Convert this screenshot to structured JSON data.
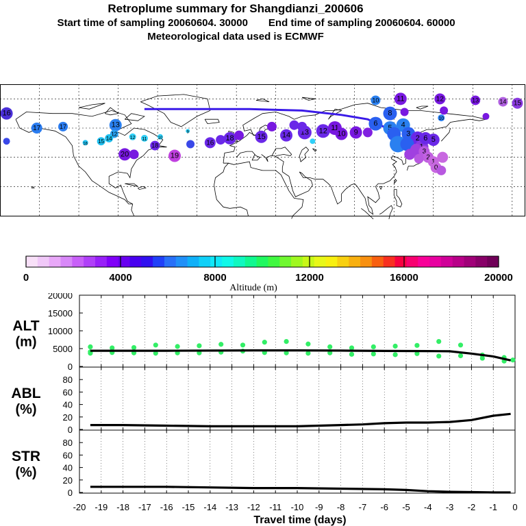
{
  "header": {
    "title": "Retroplume summary for Shangdianzi_200606",
    "start_label": "Start time of sampling 20060604. 30000",
    "end_label": "End time of sampling 20060604. 60000",
    "met_label": "Meteorological data used is ECMWF"
  },
  "colorbar": {
    "colors": [
      "#f8e0f8",
      "#f0c8f8",
      "#e8a8f8",
      "#d888f8",
      "#c860f8",
      "#b040f8",
      "#9820f8",
      "#8000f8",
      "#6800f0",
      "#4800f0",
      "#3010f0",
      "#2040f8",
      "#2870f8",
      "#2090f8",
      "#10b0f8",
      "#10d0f8",
      "#10e8f8",
      "#10f8e8",
      "#10f8c0",
      "#10f890",
      "#20f860",
      "#40f840",
      "#70f830",
      "#a0f820",
      "#c8f818",
      "#e8f818",
      "#f8f010",
      "#f8d010",
      "#f8b010",
      "#f89010",
      "#f86010",
      "#f83020",
      "#f80040",
      "#f80070",
      "#f80098",
      "#e800a0",
      "#d00098",
      "#b80088",
      "#a00078",
      "#880068",
      "#700058"
    ],
    "tick_labels": [
      "0",
      "4000",
      "8000",
      "12000",
      "16000",
      "20000"
    ],
    "tick_values": [
      0,
      4000,
      8000,
      12000,
      16000,
      20000
    ],
    "range": [
      0,
      20000
    ],
    "axis_label": "Altitude (m)"
  },
  "map": {
    "points": [
      {
        "label": "16",
        "lon": -175,
        "lat": 70,
        "color": "#4a2fd8",
        "r": 9
      },
      {
        "label": "17",
        "lon": -152,
        "lat": 60,
        "color": "#2a7cf0",
        "r": 8
      },
      {
        "label": "17",
        "lon": -132,
        "lat": 61,
        "color": "#2a7cf0",
        "r": 7
      },
      {
        "label": "",
        "lon": -175,
        "lat": 51,
        "color": "#3a48e8",
        "r": 5
      },
      {
        "label": "13",
        "lon": -92,
        "lat": 62,
        "color": "#2a80f0",
        "r": 9
      },
      {
        "label": "12",
        "lon": -93,
        "lat": 56,
        "color": "#2aa0f0",
        "r": 6
      },
      {
        "label": "14",
        "lon": -97,
        "lat": 53,
        "color": "#20c0f0",
        "r": 6
      },
      {
        "label": "15",
        "lon": -103,
        "lat": 51,
        "color": "#20c0f0",
        "r": 6
      },
      {
        "label": "16",
        "lon": -115,
        "lat": 50,
        "color": "#20c0f0",
        "r": 4
      },
      {
        "label": "12",
        "lon": -79,
        "lat": 54,
        "color": "#30d0f8",
        "r": 5
      },
      {
        "label": "11",
        "lon": -70,
        "lat": 53,
        "color": "#30d0f8",
        "r": 5
      },
      {
        "label": "10",
        "lon": -58,
        "lat": 54,
        "color": "#30d0f8",
        "r": 4
      },
      {
        "label": "9",
        "lon": -37,
        "lat": 58,
        "color": "#30d0f8",
        "r": 3
      },
      {
        "label": "",
        "lon": -35,
        "lat": 49,
        "color": "#3a48e8",
        "r": 6
      },
      {
        "label": "18",
        "lon": -62,
        "lat": 48,
        "color": "#6a28e8",
        "r": 7
      },
      {
        "label": "20",
        "lon": -85,
        "lat": 42,
        "color": "#7818e0",
        "r": 9
      },
      {
        "label": "",
        "lon": -78,
        "lat": 42,
        "color": "#7818e0",
        "r": 7
      },
      {
        "label": "19",
        "lon": -47,
        "lat": 41,
        "color": "#c040e0",
        "r": 9
      },
      {
        "label": "16",
        "lon": -20,
        "lat": 50,
        "color": "#6a28e8",
        "r": 8
      },
      {
        "label": "",
        "lon": -12,
        "lat": 52,
        "color": "#6a28e8",
        "r": 7
      },
      {
        "label": "18",
        "lon": -5,
        "lat": 53,
        "color": "#6a28e8",
        "r": 9
      },
      {
        "label": "",
        "lon": 2,
        "lat": 55,
        "color": "#7818e0",
        "r": 7
      },
      {
        "label": "15",
        "lon": 19,
        "lat": 54,
        "color": "#6a28e8",
        "r": 9
      },
      {
        "label": "",
        "lon": 27,
        "lat": 61,
        "color": "#7818e0",
        "r": 7
      },
      {
        "label": "14",
        "lon": 38,
        "lat": 55,
        "color": "#6a28e8",
        "r": 9
      },
      {
        "label": "13",
        "lon": 52,
        "lat": 57,
        "color": "#6a28e8",
        "r": 10
      },
      {
        "label": "12",
        "lon": 66,
        "lat": 58,
        "color": "#6a28e8",
        "r": 10
      },
      {
        "label": "11",
        "lon": 75,
        "lat": 60,
        "color": "#7818e0",
        "r": 10
      },
      {
        "label": "10",
        "lon": 80,
        "lat": 56,
        "color": "#7818e0",
        "r": 9
      },
      {
        "label": "9",
        "lon": 91,
        "lat": 57,
        "color": "#7818e0",
        "r": 9
      },
      {
        "label": "",
        "lon": 100,
        "lat": 57,
        "color": "#8020e0",
        "r": 7
      },
      {
        "label": "",
        "lon": 44,
        "lat": 62,
        "color": "#6a28e8",
        "r": 7
      },
      {
        "label": "",
        "lon": 50,
        "lat": 61,
        "color": "#6a28e8",
        "r": 7
      },
      {
        "label": "",
        "lon": 58,
        "lat": 51,
        "color": "#30d0f8",
        "r": 4
      },
      {
        "label": "10",
        "lon": 106,
        "lat": 79,
        "color": "#2a80f0",
        "r": 7
      },
      {
        "label": "11",
        "lon": 125,
        "lat": 80,
        "color": "#7818e0",
        "r": 9
      },
      {
        "label": "12",
        "lon": 155,
        "lat": 80,
        "color": "#7818e0",
        "r": 8
      },
      {
        "label": "13",
        "lon": 182,
        "lat": 79,
        "color": "#7818e0",
        "r": 7
      },
      {
        "label": "14",
        "lon": 203,
        "lat": 78,
        "color": "#b060e0",
        "r": 7
      },
      {
        "label": "15",
        "lon": 214,
        "lat": 77,
        "color": "#8a3ae0",
        "r": 8
      },
      {
        "label": "",
        "lon": 158,
        "lat": 72,
        "color": "#7818e0",
        "r": 6
      },
      {
        "label": "",
        "lon": 190,
        "lat": 68,
        "color": "#7818e0",
        "r": 5
      },
      {
        "label": "",
        "lon": 128,
        "lat": 71,
        "color": "#7818e0",
        "r": 6
      },
      {
        "label": "10",
        "lon": 156,
        "lat": 67,
        "color": "#2a80f0",
        "r": 5
      },
      {
        "label": "8",
        "lon": 117,
        "lat": 70,
        "color": "#2a60f0",
        "r": 10
      },
      {
        "label": "6",
        "lon": 106,
        "lat": 63,
        "color": "#2a60f0",
        "r": 10
      },
      {
        "label": "5",
        "lon": 117,
        "lat": 60,
        "color": "#2a80f0",
        "r": 10
      },
      {
        "label": "4",
        "lon": 127,
        "lat": 62,
        "color": "#2a80f0",
        "r": 10
      },
      {
        "label": "3",
        "lon": 131,
        "lat": 56,
        "color": "#2a60f0",
        "r": 10
      },
      {
        "label": "",
        "lon": 120,
        "lat": 56,
        "color": "#2a60f0",
        "r": 10
      },
      {
        "label": "2",
        "lon": 138,
        "lat": 53,
        "color": "#6a28e8",
        "r": 10
      },
      {
        "label": "1",
        "lon": 141,
        "lat": 47,
        "color": "#8a3ae0",
        "r": 10
      },
      {
        "label": "",
        "lon": 123,
        "lat": 49,
        "color": "#2a80f0",
        "r": 12
      },
      {
        "label": "",
        "lon": 130,
        "lat": 49,
        "color": "#2a60f0",
        "r": 10
      },
      {
        "label": "",
        "lon": 137,
        "lat": 45,
        "color": "#a040e0",
        "r": 9
      },
      {
        "label": "6",
        "lon": 144,
        "lat": 53,
        "color": "#6a28e8",
        "r": 9
      },
      {
        "label": "5",
        "lon": 150,
        "lat": 52,
        "color": "#6a28e8",
        "r": 9
      },
      {
        "label": "3",
        "lon": 143,
        "lat": 44,
        "color": "#b858e0",
        "r": 8
      },
      {
        "label": "2",
        "lon": 146,
        "lat": 40,
        "color": "#c060e0",
        "r": 8
      },
      {
        "label": "1",
        "lon": 150,
        "lat": 37,
        "color": "#c868e0",
        "r": 8
      },
      {
        "label": "0",
        "lon": 152,
        "lat": 33,
        "color": "#c868e0",
        "r": 8
      },
      {
        "label": "",
        "lon": 157,
        "lat": 40,
        "color": "#c868e0",
        "r": 8
      },
      {
        "label": "",
        "lon": 156,
        "lat": 31,
        "color": "#b858e0",
        "r": 7
      },
      {
        "label": "",
        "lon": 139,
        "lat": 39,
        "color": "#b858e0",
        "r": 7
      },
      {
        "label": "",
        "lon": 132,
        "lat": 42,
        "color": "#a040e0",
        "r": 8
      }
    ],
    "track": [
      [
        -70,
        73
      ],
      [
        -30,
        73
      ],
      [
        10,
        73
      ],
      [
        50,
        72
      ],
      [
        80,
        69
      ],
      [
        100,
        66
      ],
      [
        112,
        61
      ],
      [
        117,
        57
      ],
      [
        124,
        52
      ],
      [
        129,
        49
      ],
      [
        135,
        45
      ],
      [
        141,
        41
      ],
      [
        150,
        37
      ],
      [
        155,
        32
      ]
    ]
  },
  "chart_data": [
    {
      "type": "scatter",
      "name": "ALT",
      "ylabel_line1": "ALT",
      "ylabel_line2": "(m)",
      "ylim": [
        0,
        20000
      ],
      "yticks": [
        0,
        5000,
        10000,
        15000,
        20000
      ],
      "ytick_labels": [
        "0",
        "5000",
        "10000",
        "15000",
        "20000"
      ],
      "xlim": [
        -20,
        0
      ],
      "median_line": {
        "x": [
          -19.5,
          -18,
          -16,
          -14,
          -12,
          -10,
          -8,
          -6,
          -4,
          -3,
          -2,
          -1,
          -0.2
        ],
        "y": [
          4400,
          4400,
          4400,
          4450,
          4500,
          4500,
          4450,
          4350,
          4300,
          4250,
          3600,
          2800,
          1700
        ]
      },
      "points": {
        "x": [
          -19.5,
          -19.5,
          -19.5,
          -18.5,
          -18.5,
          -17.5,
          -17.5,
          -16.5,
          -16.5,
          -15.5,
          -15.5,
          -14.5,
          -14.5,
          -13.5,
          -13.5,
          -12.5,
          -12.5,
          -11.5,
          -11.5,
          -10.5,
          -10.5,
          -9.5,
          -9.5,
          -8.5,
          -8.5,
          -7.5,
          -7.5,
          -6.5,
          -6.5,
          -5.5,
          -5.5,
          -4.5,
          -4.5,
          -3.5,
          -3.5,
          -2.5,
          -2.5,
          -1.5,
          -1.5,
          -0.5,
          -0.5,
          -0.1
        ],
        "y": [
          5500,
          4100,
          3700,
          5200,
          3900,
          5300,
          3800,
          6000,
          3700,
          5600,
          3800,
          5800,
          3800,
          6200,
          4000,
          6000,
          4300,
          6800,
          3900,
          7000,
          3800,
          6300,
          3700,
          5500,
          3800,
          5200,
          3400,
          5500,
          3500,
          5700,
          3300,
          5900,
          3600,
          7000,
          2900,
          6000,
          3000,
          3200,
          2300,
          2500,
          1500,
          1800
        ],
        "color": "#33ee66"
      }
    },
    {
      "type": "line",
      "name": "ABL",
      "ylabel_line1": "ABL",
      "ylabel_line2": "(%)",
      "ylim": [
        0,
        100
      ],
      "yticks": [
        0,
        20,
        40,
        60,
        80
      ],
      "ytick_labels": [
        "0",
        "20",
        "40",
        "60",
        "80"
      ],
      "xlim": [
        -20,
        0
      ],
      "x": [
        -19.5,
        -18,
        -16,
        -14,
        -12,
        -10,
        -9,
        -8,
        -7,
        -6,
        -5,
        -4,
        -3,
        -2,
        -1,
        -0.2
      ],
      "y": [
        7,
        7,
        6,
        5,
        5,
        5,
        6,
        7,
        8,
        10,
        11,
        11,
        12,
        15,
        22,
        25
      ]
    },
    {
      "type": "line",
      "name": "STR",
      "ylabel_line1": "STR",
      "ylabel_line2": "(%)",
      "ylim": [
        0,
        100
      ],
      "yticks": [
        0,
        20,
        40,
        60,
        80
      ],
      "ytick_labels": [
        "0",
        "20",
        "40",
        "60",
        "80"
      ],
      "xlim": [
        -20,
        0
      ],
      "x": [
        -19.5,
        -18,
        -16,
        -14,
        -12,
        -10,
        -8,
        -6,
        -5,
        -4,
        -3,
        -2,
        -1,
        -0.2
      ],
      "y": [
        9,
        9,
        9,
        8,
        7,
        7,
        6,
        5,
        4,
        2,
        1,
        0.5,
        0,
        0
      ],
      "xticks": [
        -20,
        -19,
        -18,
        -17,
        -16,
        -15,
        -14,
        -13,
        -12,
        -11,
        -10,
        -9,
        -8,
        -7,
        -6,
        -5,
        -4,
        -3,
        -2,
        -1,
        0
      ],
      "xtick_labels": [
        "-20",
        "-19",
        "-18",
        "-17",
        "-16",
        "-15",
        "-14",
        "-13",
        "-12",
        "-11",
        "-10",
        "-9",
        "-8",
        "-7",
        "-6",
        "-5",
        "-4",
        "-3",
        "-2",
        "-1",
        "0"
      ],
      "xlabel": "Travel time (days)"
    }
  ]
}
